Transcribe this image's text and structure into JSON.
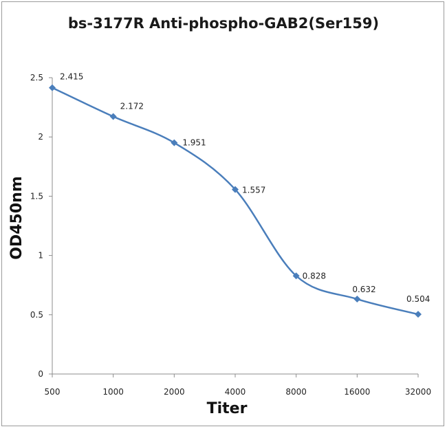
{
  "chart_data": {
    "type": "line",
    "title": "bs-3177R Anti-phospho-GAB2(Ser159)",
    "xlabel": "Titer",
    "ylabel": "OD450nm",
    "categories": [
      "500",
      "1000",
      "2000",
      "4000",
      "8000",
      "16000",
      "32000"
    ],
    "series": [
      {
        "values": [
          2.415,
          2.172,
          1.951,
          1.557,
          0.828,
          0.632,
          0.504
        ],
        "labels": [
          "2.415",
          "2.172",
          "1.951",
          "1.557",
          "0.828",
          "0.632",
          "0.504"
        ]
      }
    ],
    "ylim": [
      0,
      2.5
    ],
    "yticks": [
      "0",
      "0.5",
      "1",
      "1.5",
      "2",
      "2.5"
    ],
    "grid": false,
    "legend": "none",
    "line_color": "#4a7ebb",
    "smooth": true
  }
}
